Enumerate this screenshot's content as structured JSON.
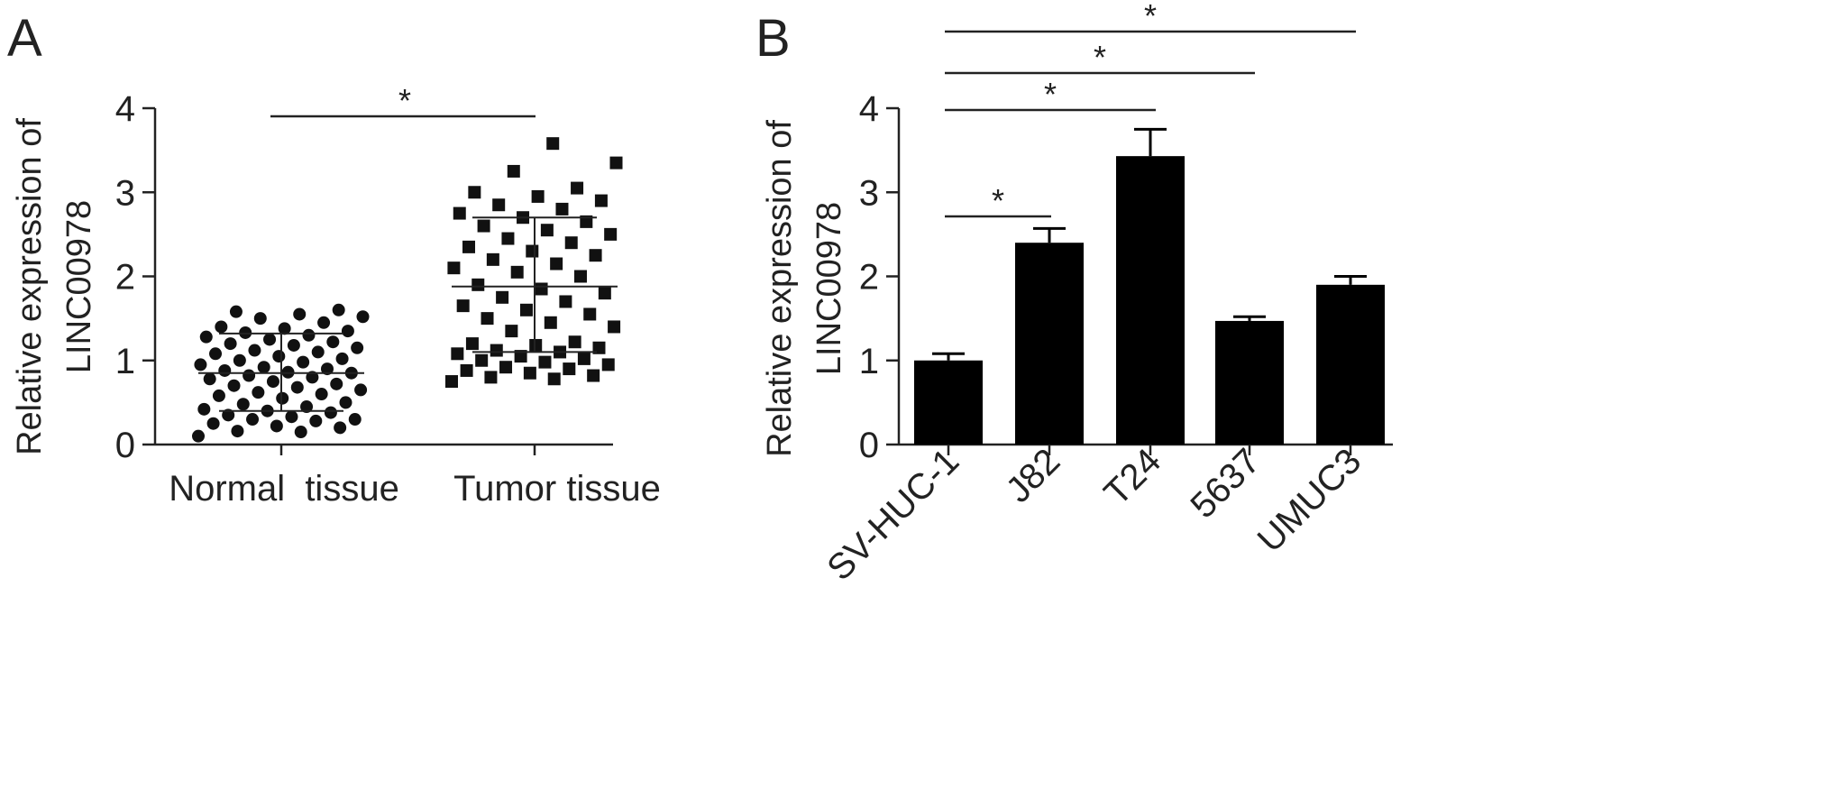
{
  "chart_data": [
    {
      "panel_label": "A",
      "type": "scatter",
      "ylabel_lines": [
        "Relative expression of",
        "LINC00978"
      ],
      "ylim": [
        0,
        4
      ],
      "yticks": [
        "0",
        "1",
        "2",
        "3",
        "4"
      ],
      "categories": [
        "Normal  tissue",
        "Tumor tissue"
      ],
      "groups": [
        {
          "category": "Normal  tissue",
          "marker": "circle",
          "mean": 0.85,
          "sd_low": 0.4,
          "sd_high": 1.32,
          "values": [
            0.1,
            0.15,
            0.16,
            0.2,
            0.22,
            0.25,
            0.28,
            0.3,
            0.3,
            0.33,
            0.35,
            0.38,
            0.4,
            0.42,
            0.45,
            0.48,
            0.5,
            0.55,
            0.58,
            0.6,
            0.62,
            0.65,
            0.68,
            0.7,
            0.72,
            0.75,
            0.78,
            0.8,
            0.82,
            0.85,
            0.86,
            0.88,
            0.9,
            0.92,
            0.95,
            0.98,
            1.0,
            1.02,
            1.05,
            1.08,
            1.1,
            1.12,
            1.15,
            1.18,
            1.2,
            1.22,
            1.25,
            1.28,
            1.3,
            1.33,
            1.35,
            1.38,
            1.4,
            1.45,
            1.5,
            1.52,
            1.55,
            1.58,
            1.6
          ]
        },
        {
          "category": "Tumor tissue",
          "marker": "square",
          "mean": 1.88,
          "sd_low": 1.1,
          "sd_high": 2.7,
          "values": [
            0.75,
            0.78,
            0.8,
            0.82,
            0.85,
            0.88,
            0.9,
            0.92,
            0.95,
            0.98,
            1.0,
            1.02,
            1.05,
            1.08,
            1.1,
            1.12,
            1.15,
            1.18,
            1.2,
            1.22,
            1.35,
            1.4,
            1.45,
            1.5,
            1.55,
            1.6,
            1.65,
            1.7,
            1.75,
            1.8,
            1.85,
            1.9,
            2.0,
            2.05,
            2.1,
            2.15,
            2.2,
            2.25,
            2.3,
            2.35,
            2.4,
            2.45,
            2.5,
            2.55,
            2.6,
            2.65,
            2.7,
            2.75,
            2.8,
            2.85,
            2.9,
            2.95,
            3.0,
            3.05,
            3.25,
            3.35,
            3.58
          ]
        }
      ],
      "significance": [
        {
          "from": 0,
          "to": 1,
          "label": "*"
        }
      ]
    },
    {
      "panel_label": "B",
      "type": "bar",
      "ylabel_lines": [
        "Relative expression of",
        "LINC00978"
      ],
      "ylim": [
        0,
        4
      ],
      "yticks": [
        "0",
        "1",
        "2",
        "3",
        "4"
      ],
      "categories": [
        "SV-HUC-1",
        "J82",
        "T24",
        "5637",
        "UMUC3"
      ],
      "values": [
        1.0,
        2.4,
        3.43,
        1.47,
        1.9
      ],
      "errors": [
        0.08,
        0.17,
        0.32,
        0.05,
        0.1
      ],
      "bar_color": "#000000",
      "significance": [
        {
          "from": 0,
          "to": 1,
          "label": "*"
        },
        {
          "from": 0,
          "to": 2,
          "label": "*"
        },
        {
          "from": 0,
          "to": 3,
          "label": "*"
        },
        {
          "from": 0,
          "to": 4,
          "label": "*"
        }
      ]
    }
  ]
}
